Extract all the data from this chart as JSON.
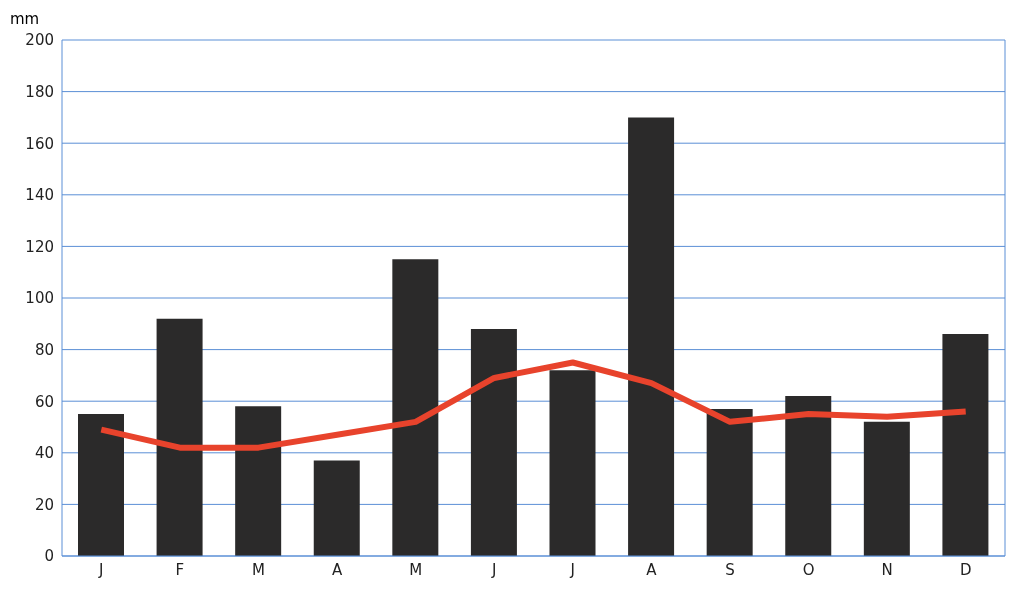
{
  "chart_data": {
    "type": "bar",
    "ylabel": "mm",
    "categories": [
      "J",
      "F",
      "M",
      "A",
      "M",
      "J",
      "J",
      "A",
      "S",
      "O",
      "N",
      "D"
    ],
    "series": [
      {
        "color": "#2b2a2a",
        "values": [
          55,
          92,
          58,
          37,
          115,
          88,
          72,
          170,
          57,
          62,
          52,
          86
        ]
      },
      {
        "type": "line",
        "color": "#e8432c",
        "values": [
          49,
          42,
          42,
          47,
          52,
          69,
          75,
          67,
          52,
          55,
          54,
          56
        ]
      }
    ],
    "ylim": [
      0,
      200
    ],
    "yticks": [
      0,
      20,
      40,
      60,
      80,
      100,
      120,
      140,
      160,
      180,
      200
    ],
    "grid": "y",
    "legend": false,
    "marker": "none",
    "line_style": "solid"
  }
}
